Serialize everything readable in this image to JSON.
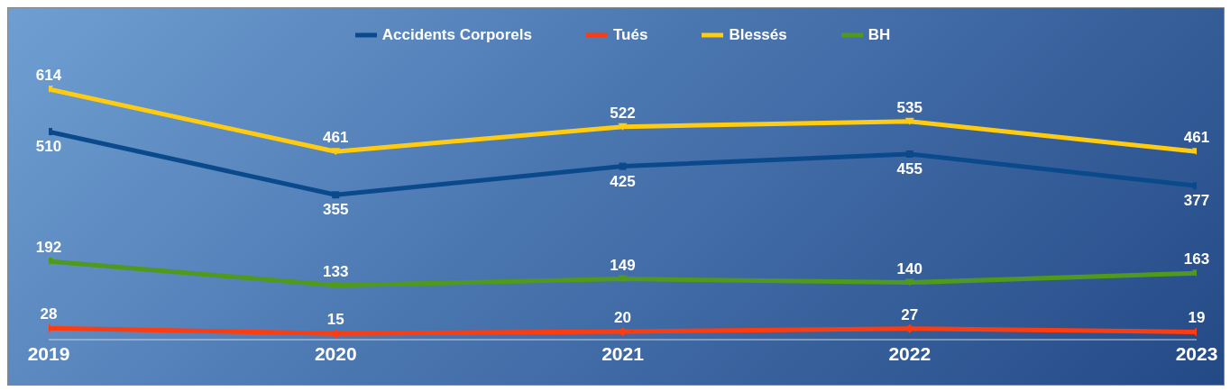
{
  "chart_data": {
    "type": "line",
    "categories": [
      "2019",
      "2020",
      "2021",
      "2022",
      "2023"
    ],
    "series": [
      {
        "name": "Accidents Corporels",
        "color": "#0a4a8c",
        "values": [
          510,
          355,
          425,
          455,
          377
        ],
        "marker": "square"
      },
      {
        "name": "Tués",
        "color": "#ff3c10",
        "values": [
          28,
          15,
          20,
          27,
          19
        ],
        "marker": "diamond"
      },
      {
        "name": "Blessés",
        "color": "#ffcc11",
        "values": [
          614,
          461,
          522,
          535,
          461
        ],
        "marker": "triangle"
      },
      {
        "name": "BH",
        "color": "#4f9a1c",
        "values": [
          192,
          133,
          149,
          140,
          163
        ],
        "marker": "triangle"
      }
    ],
    "data_labels": true,
    "legend": "top"
  }
}
